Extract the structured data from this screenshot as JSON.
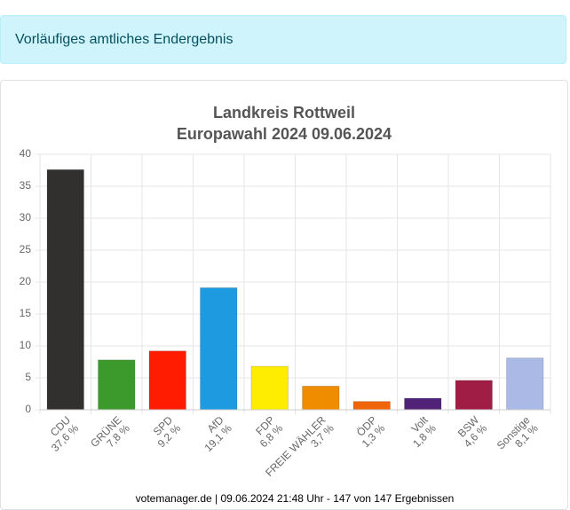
{
  "banner": "Vorläufiges amtliches Endergebnis",
  "chart_data": {
    "type": "bar",
    "title": "Landkreis Rottweil",
    "subtitle": "Europawahl 2024 09.06.2024",
    "categories": [
      "CDU",
      "GRÜNE",
      "SPD",
      "AfD",
      "FDP",
      "FREIE WÄHLER",
      "ÖDP",
      "Volt",
      "BSW",
      "Sonstige"
    ],
    "values": [
      37.6,
      7.8,
      9.2,
      19.1,
      6.8,
      3.7,
      1.3,
      1.8,
      4.6,
      8.1
    ],
    "value_labels": [
      "37,6 %",
      "7,8 %",
      "9,2 %",
      "19,1 %",
      "6,8 %",
      "3,7 %",
      "1,3 %",
      "1,8 %",
      "4,6 %",
      "8,1 %"
    ],
    "colors": [
      "#32302e",
      "#3c9a2c",
      "#ff1c00",
      "#1e9be0",
      "#ffed00",
      "#f08c00",
      "#f0640a",
      "#502379",
      "#a01e46",
      "#aab9e6"
    ],
    "ylim": [
      0,
      40
    ],
    "yticks": [
      0,
      5,
      10,
      15,
      20,
      25,
      30,
      35,
      40
    ],
    "grid": true,
    "source": "votemanager.de | 09.06.2024 21:48 Uhr - 147 von 147 Ergebnissen"
  }
}
